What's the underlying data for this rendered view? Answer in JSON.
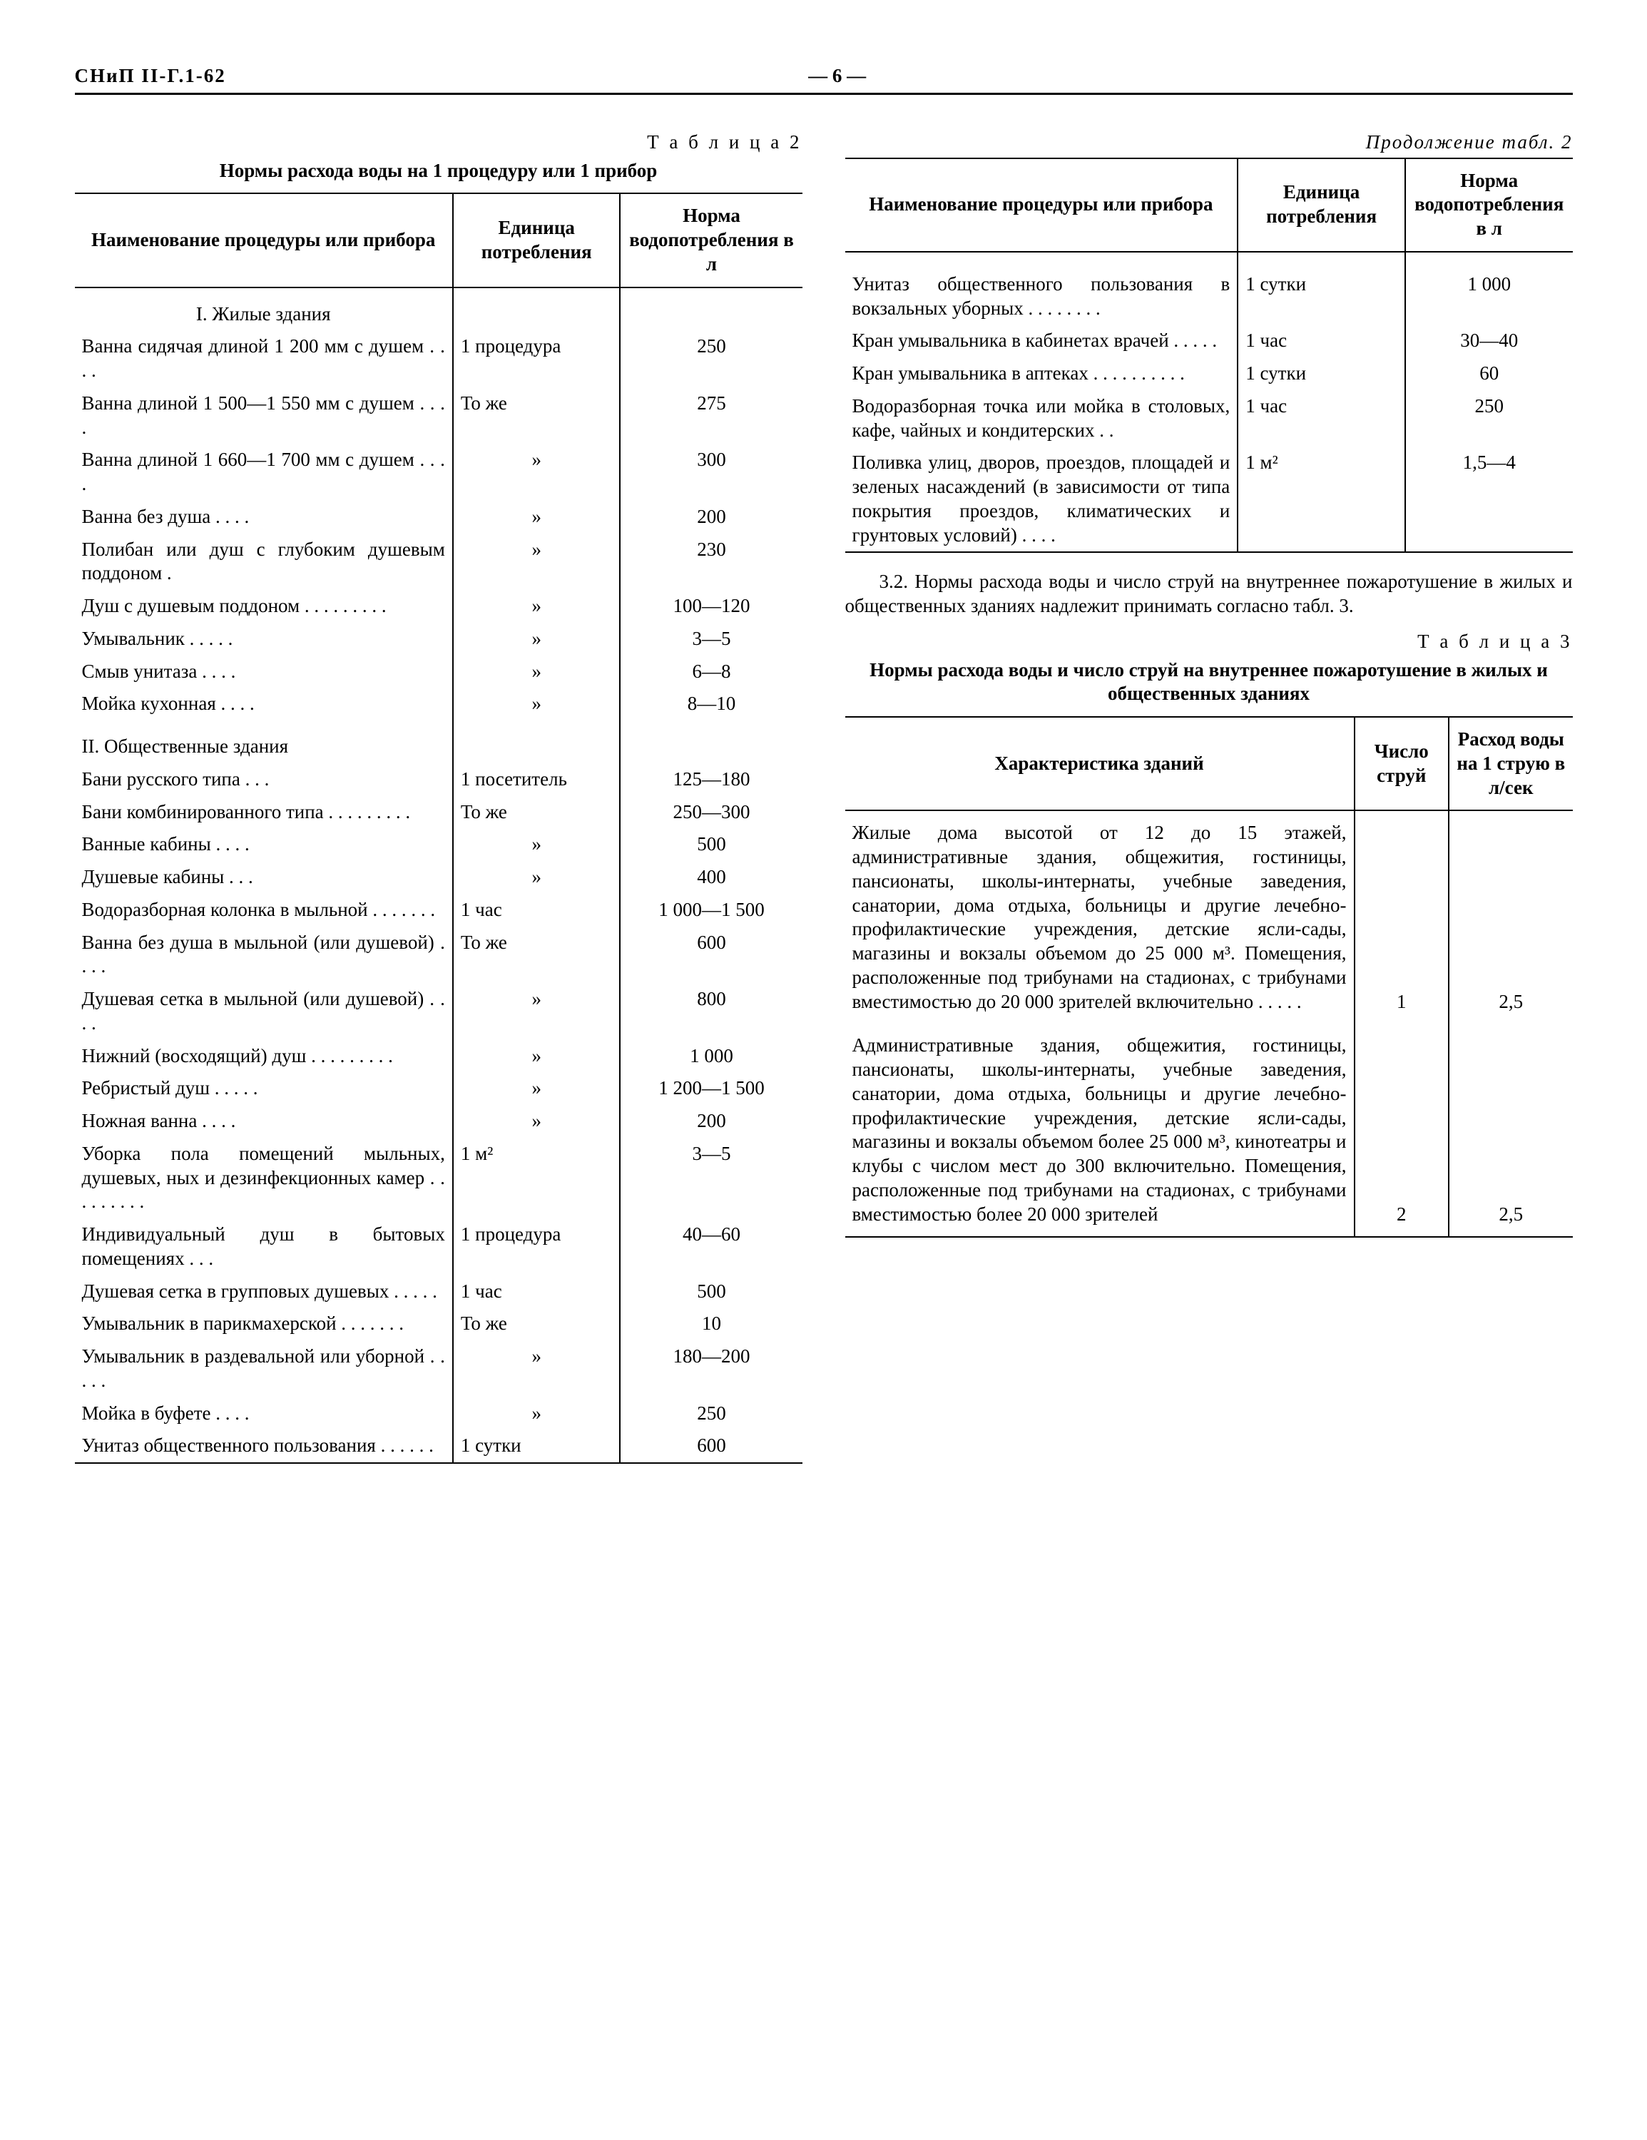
{
  "header": {
    "code": "СНиП II-Г.1-62",
    "page": "— 6 —"
  },
  "t2": {
    "label": "Т а б л и ц а  2",
    "caption": "Нормы расхода воды на 1 процедуру или 1 прибор",
    "cont_label": "Продолжение табл. 2",
    "cols": [
      "Наименование процедуры или прибора",
      "Единица потребления",
      "Норма водопотребления в л"
    ],
    "cols_cont": [
      "Наименование процедуры или прибора",
      "Единица потребления",
      "Норма водопотребления в л"
    ],
    "sec1": "I. Жилые здания",
    "sec2": "II. Общественные здания",
    "rows": [
      {
        "n": "Ванна сидячая длиной 1 200 мм с душем . . . .",
        "u": "1 процедура",
        "v": "250"
      },
      {
        "n": "Ванна длиной 1 500—1 550 мм с душем . . . .",
        "u": "То же",
        "v": "275"
      },
      {
        "n": "Ванна длиной 1 660—1 700 мм с душем . . . .",
        "u": "»",
        "v": "300"
      },
      {
        "n": "Ванна без душа . . . .",
        "u": "»",
        "v": "200"
      },
      {
        "n": "Полибан или душ с глубоким душевым поддоном .",
        "u": "»",
        "v": "230"
      },
      {
        "n": "Душ с душевым поддоном . . . . . . . . .",
        "u": "»",
        "v": "100—120"
      },
      {
        "n": "Умывальник . . . . .",
        "u": "»",
        "v": "3—5"
      },
      {
        "n": "Смыв унитаза . . . .",
        "u": "»",
        "v": "6—8"
      },
      {
        "n": "Мойка кухонная . . . .",
        "u": "»",
        "v": "8—10"
      }
    ],
    "rows2": [
      {
        "n": "Бани русского типа . . .",
        "u": "1 посетитель",
        "v": "125—180"
      },
      {
        "n": "Бани комбинированного типа . . . . . . . . .",
        "u": "То же",
        "v": "250—300"
      },
      {
        "n": "Ванные кабины . . . .",
        "u": "»",
        "v": "500"
      },
      {
        "n": "Душевые кабины . . .",
        "u": "»",
        "v": "400"
      },
      {
        "n": "Водоразборная колонка в мыльной . . . . . . .",
        "u": "1 час",
        "v": "1 000—1 500"
      },
      {
        "n": "Ванна без душа в мыльной (или душевой) . . . .",
        "u": "То же",
        "v": "600"
      },
      {
        "n": "Душевая сетка в мыльной (или душевой) . . . .",
        "u": "»",
        "v": "800"
      },
      {
        "n": "Нижний (восходящий) душ . . . . . . . . .",
        "u": "»",
        "v": "1 000"
      },
      {
        "n": "Ребристый душ . . . . .",
        "u": "»",
        "v": "1 200—1 500"
      },
      {
        "n": "Ножная ванна . . . .",
        "u": "»",
        "v": "200"
      },
      {
        "n": "Уборка пола помещений мыльных, душевых, ных и дезинфекционных камер . . . . . . . . .",
        "u": "1 м²",
        "v": "3—5"
      },
      {
        "n": "Индивидуальный душ в бытовых помещениях . . .",
        "u": "1 процедура",
        "v": "40—60"
      },
      {
        "n": "Душевая сетка в групповых душевых . . . . .",
        "u": "1 час",
        "v": "500"
      },
      {
        "n": "Умывальник в парикмахерской . . . . . . .",
        "u": "То же",
        "v": "10"
      },
      {
        "n": "Умывальник в раздевальной или уборной . . . . .",
        "u": "»",
        "v": "180—200"
      },
      {
        "n": "Мойка в буфете . . . .",
        "u": "»",
        "v": "250"
      },
      {
        "n": "Унитаз общественного пользования . . . . . .",
        "u": "1 сутки",
        "v": "600"
      }
    ],
    "rows_cont": [
      {
        "n": "Унитаз общественного пользования в вокзальных уборных . . . . . . . .",
        "u": "1 сутки",
        "v": "1 000"
      },
      {
        "n": "Кран умывальника в кабинетах врачей . . . . .",
        "u": "1 час",
        "v": "30—40"
      },
      {
        "n": "Кран умывальника в аптеках . . . . . . . . . .",
        "u": "1 сутки",
        "v": "60"
      },
      {
        "n": "Водоразборная точка или мойка в столовых, кафе, чайных и кондитерских . .",
        "u": "1 час",
        "v": "250"
      },
      {
        "n": "Поливка улиц, дворов, проездов, площадей и зеленых насаждений (в зависимости от типа покрытия проездов, климатических и грунтовых условий) . . . .",
        "u": "1 м²",
        "v": "1,5—4"
      }
    ]
  },
  "para32": "3.2. Нормы расхода воды и число струй на внутреннее пожаротушение в жилых и общественных зданиях надлежит принимать согласно табл. 3.",
  "t3": {
    "label": "Т а б л и ц а  3",
    "caption": "Нормы расхода воды и число струй на внутреннее пожаротушение в жилых и общественных зданиях",
    "cols": [
      "Характеристика зданий",
      "Число струй",
      "Расход воды на 1 струю в л/сек"
    ],
    "rows": [
      {
        "d": "Жилые дома высотой от 12 до 15 этажей, административные здания, общежития, гостиницы, пансионаты, школы-интернаты, учебные заведения, санатории, дома отдыха, больницы и другие лечебно-профилактические учреждения, детские ясли-сады, магазины и вокзалы объемом до 25 000 м³. Помещения, расположенные под трибунами на стадионах, с трибунами вместимостью до 20 000 зрителей включительно . . . . .",
        "n": "1",
        "v": "2,5"
      },
      {
        "d": "Административные здания, общежития, гостиницы, пансионаты, школы-интернаты, учебные заведения, санатории, дома отдыха, больницы и другие лечебно-профилактические учреждения, детские ясли-сады, магазины и вокзалы объемом более 25 000 м³, кинотеатры и клубы с числом мест до 300 включительно. Помещения, расположенные под трибунами на стадионах, с трибунами вместимостью более 20 000 зрителей",
        "n": "2",
        "v": "2,5"
      }
    ]
  }
}
